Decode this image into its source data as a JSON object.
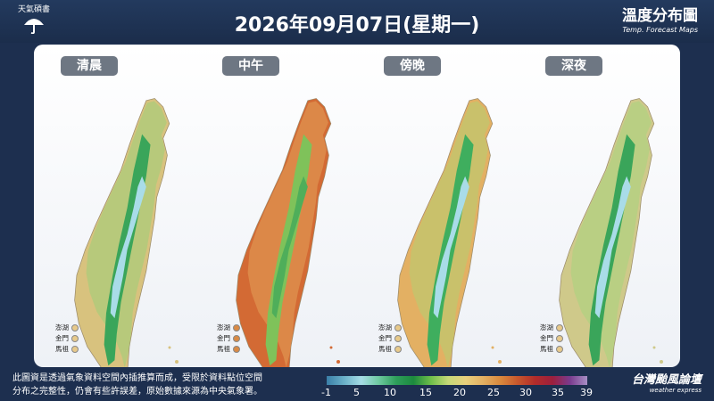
{
  "header": {
    "logo_text": "天氣碩書",
    "title": "2026年09月07日(星期一)",
    "brand_title": "溫度分布圖",
    "brand_subtitle": "Temp. Forecast Maps"
  },
  "maps": [
    {
      "label": "清晨",
      "scheme": "early"
    },
    {
      "label": "中午",
      "scheme": "noon"
    },
    {
      "label": "傍晚",
      "scheme": "evening"
    },
    {
      "label": "深夜",
      "scheme": "night"
    }
  ],
  "islands": [
    "澎湖",
    "金門",
    "馬祖"
  ],
  "footer": {
    "note_line1": "此圖資是透過氣象資料空間內插推算而成，受限於資料點位空間",
    "note_line2": "分布之完整性，仍會有些許誤差，原始數據來源為中央氣象署。",
    "colorbar_ticks": [
      "-1",
      "5",
      "10",
      "15",
      "20",
      "25",
      "30",
      "35",
      "39"
    ],
    "brand_main": "台灣颱風論壇",
    "brand_sub": "weather express"
  },
  "colors": {
    "background": "#1d2f4f",
    "panel": "#ffffff",
    "pill": "#6e7783",
    "cold_core": "#a9dce8",
    "mountain_green": "#2e9e4f",
    "lowland_warm": "#e3b063",
    "noon_hot": "#d36a34"
  }
}
